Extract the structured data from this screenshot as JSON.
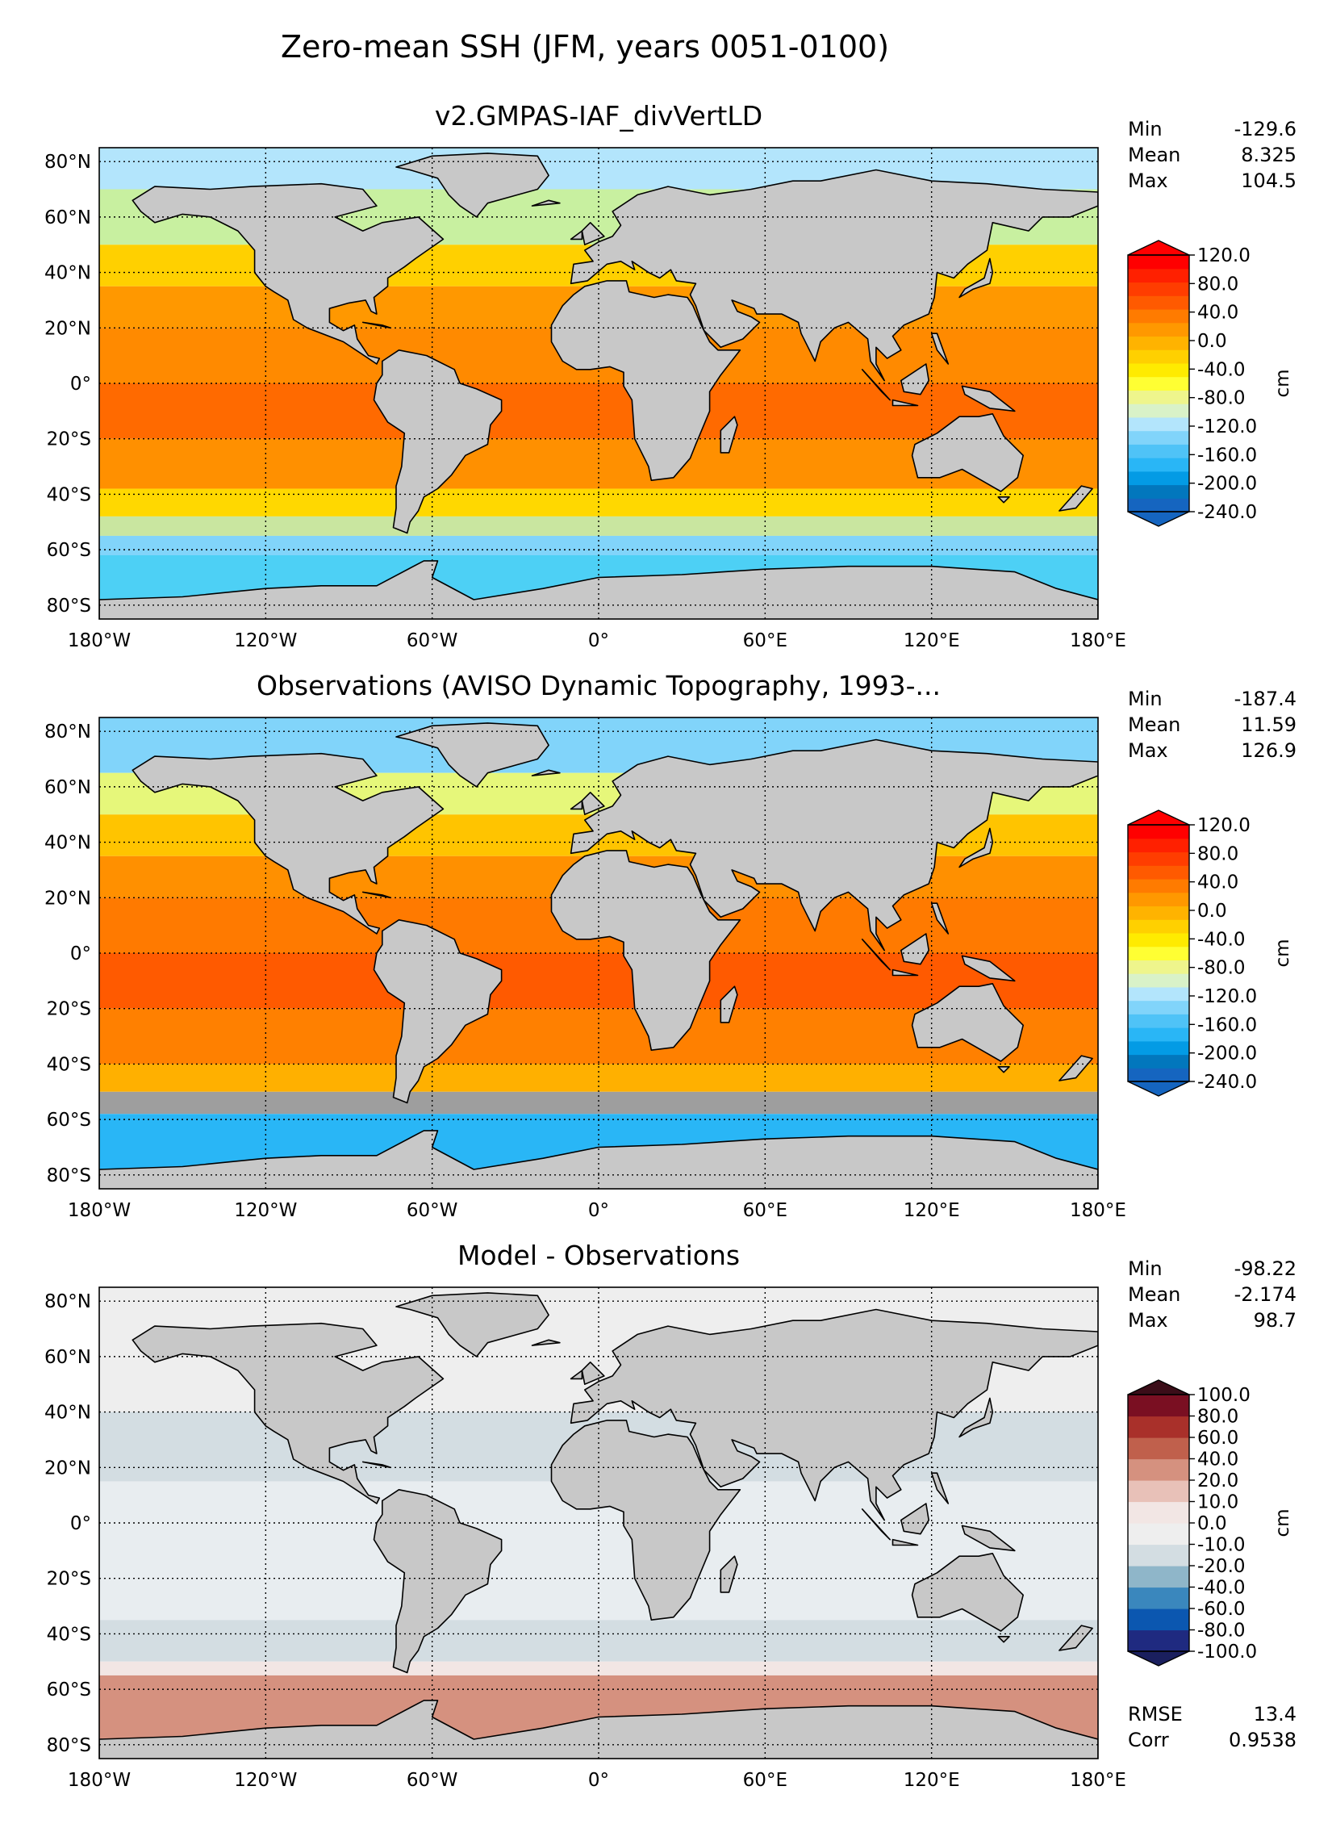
{
  "figure": {
    "suptitle": "Zero-mean SSH (JFM, years 0051-0100)"
  },
  "colors": {
    "land": "#c8c8c8",
    "grid": "#000000"
  },
  "chart_data": [
    {
      "type": "heatmap",
      "title": "v2.GMPAS-IAF_divVertLD",
      "units": "cm",
      "x_ticks": [
        "180°W",
        "120°W",
        "60°W",
        "0°",
        "60°E",
        "120°E",
        "180°E"
      ],
      "y_ticks": [
        "80°N",
        "60°N",
        "40°N",
        "20°N",
        "0°",
        "20°S",
        "40°S",
        "60°S",
        "80°S"
      ],
      "xlim": [
        -180,
        180
      ],
      "ylim": [
        -85,
        85
      ],
      "grid": true,
      "stats": [
        {
          "label": "Min",
          "value": "-129.6"
        },
        {
          "label": "Mean",
          "value": "8.325"
        },
        {
          "label": "Max",
          "value": "104.5"
        }
      ],
      "colorbar": {
        "ticks": [
          "120.0",
          "80.0",
          "40.0",
          "0.0",
          "-40.0",
          "-80.0",
          "-120.0",
          "-160.0",
          "-200.0",
          "-240.0"
        ],
        "colors": [
          "#1565c0",
          "#0277bd",
          "#039be5",
          "#29b6f6",
          "#4fc3f7",
          "#81d4fa",
          "#b3e5fc",
          "#d9f2c8",
          "#eef58c",
          "#ffff33",
          "#ffeb00",
          "#ffd000",
          "#ffb300",
          "#ff9800",
          "#ff7b00",
          "#ff5a00",
          "#ff3d00",
          "#ff2000",
          "#ff0000"
        ],
        "extend": "both"
      },
      "bands": [
        {
          "lat": [
            70,
            85
          ],
          "color": "#b3e5fc"
        },
        {
          "lat": [
            50,
            70
          ],
          "color": "#c8f0a0"
        },
        {
          "lat": [
            35,
            50
          ],
          "color": "#ffd000"
        },
        {
          "lat": [
            20,
            35
          ],
          "color": "#ff9800"
        },
        {
          "lat": [
            0,
            20
          ],
          "color": "#ff8a00"
        },
        {
          "lat": [
            -20,
            0
          ],
          "color": "#ff6a00"
        },
        {
          "lat": [
            -38,
            -20
          ],
          "color": "#ff9000"
        },
        {
          "lat": [
            -48,
            -38
          ],
          "color": "#ffd800"
        },
        {
          "lat": [
            -55,
            -48
          ],
          "color": "#c9e6a0"
        },
        {
          "lat": [
            -62,
            -55
          ],
          "color": "#81d4fa"
        },
        {
          "lat": [
            -85,
            -62
          ],
          "color": "#4dd0f5"
        }
      ]
    },
    {
      "type": "heatmap",
      "title": "Observations (AVISO Dynamic Topography, 1993-...",
      "units": "cm",
      "x_ticks": [
        "180°W",
        "120°W",
        "60°W",
        "0°",
        "60°E",
        "120°E",
        "180°E"
      ],
      "y_ticks": [
        "80°N",
        "60°N",
        "40°N",
        "20°N",
        "0°",
        "20°S",
        "40°S",
        "60°S",
        "80°S"
      ],
      "xlim": [
        -180,
        180
      ],
      "ylim": [
        -85,
        85
      ],
      "grid": true,
      "stats": [
        {
          "label": "Min",
          "value": "-187.4"
        },
        {
          "label": "Mean",
          "value": "11.59"
        },
        {
          "label": "Max",
          "value": "126.9"
        }
      ],
      "colorbar": {
        "ticks": [
          "120.0",
          "80.0",
          "40.0",
          "0.0",
          "-40.0",
          "-80.0",
          "-120.0",
          "-160.0",
          "-200.0",
          "-240.0"
        ],
        "colors": [
          "#1565c0",
          "#0277bd",
          "#039be5",
          "#29b6f6",
          "#4fc3f7",
          "#81d4fa",
          "#b3e5fc",
          "#d9f2c8",
          "#eef58c",
          "#ffff33",
          "#ffeb00",
          "#ffd000",
          "#ffb300",
          "#ff9800",
          "#ff7b00",
          "#ff5a00",
          "#ff3d00",
          "#ff2000",
          "#ff0000"
        ],
        "extend": "both"
      },
      "bands": [
        {
          "lat": [
            65,
            85
          ],
          "color": "#81d4fa"
        },
        {
          "lat": [
            50,
            65
          ],
          "color": "#e6f77a"
        },
        {
          "lat": [
            35,
            50
          ],
          "color": "#ffc400"
        },
        {
          "lat": [
            20,
            35
          ],
          "color": "#ff9000"
        },
        {
          "lat": [
            0,
            20
          ],
          "color": "#ff7a00"
        },
        {
          "lat": [
            -20,
            0
          ],
          "color": "#ff5a00"
        },
        {
          "lat": [
            -40,
            -20
          ],
          "color": "#ff8000"
        },
        {
          "lat": [
            -50,
            -40
          ],
          "color": "#ffb000"
        },
        {
          "lat": [
            -58,
            -50
          ],
          "color": "#9e9e9e"
        },
        {
          "lat": [
            -85,
            -58
          ],
          "color": "#29b6f6"
        }
      ]
    },
    {
      "type": "heatmap",
      "title": "Model - Observations",
      "units": "cm",
      "x_ticks": [
        "180°W",
        "120°W",
        "60°W",
        "0°",
        "60°E",
        "120°E",
        "180°E"
      ],
      "y_ticks": [
        "80°N",
        "60°N",
        "40°N",
        "20°N",
        "0°",
        "20°S",
        "40°S",
        "60°S",
        "80°S"
      ],
      "xlim": [
        -180,
        180
      ],
      "ylim": [
        -85,
        85
      ],
      "grid": true,
      "stats": [
        {
          "label": "Min",
          "value": "-98.22"
        },
        {
          "label": "Mean",
          "value": "-2.174"
        },
        {
          "label": "Max",
          "value": "98.7"
        }
      ],
      "extra_stats": [
        {
          "label": "RMSE",
          "value": "13.4"
        },
        {
          "label": "Corr",
          "value": "0.9538"
        }
      ],
      "colorbar": {
        "ticks": [
          "100.0",
          "80.0",
          "60.0",
          "40.0",
          "20.0",
          "10.0",
          "0.0",
          "-10.0",
          "-20.0",
          "-40.0",
          "-60.0",
          "-80.0",
          "-100.0"
        ],
        "colors": [
          "#1f2a80",
          "#0b57b0",
          "#3a87bd",
          "#8fb6c9",
          "#d3dde2",
          "#eeeeee",
          "#f2e6e4",
          "#e8c1b8",
          "#d5917f",
          "#c0604c",
          "#a9302a",
          "#7a0f22"
        ],
        "extend": "both"
      },
      "bands": [
        {
          "lat": [
            40,
            85
          ],
          "color": "#eeeeee"
        },
        {
          "lat": [
            15,
            40
          ],
          "color": "#d3dde2"
        },
        {
          "lat": [
            -35,
            15
          ],
          "color": "#e8edf0"
        },
        {
          "lat": [
            -50,
            -35
          ],
          "color": "#d3dde2"
        },
        {
          "lat": [
            -55,
            -50
          ],
          "color": "#f2e6e4"
        },
        {
          "lat": [
            -78,
            -55
          ],
          "color": "#d5917f"
        },
        {
          "lat": [
            -85,
            -78
          ],
          "color": "#f2e6e4"
        }
      ]
    }
  ]
}
